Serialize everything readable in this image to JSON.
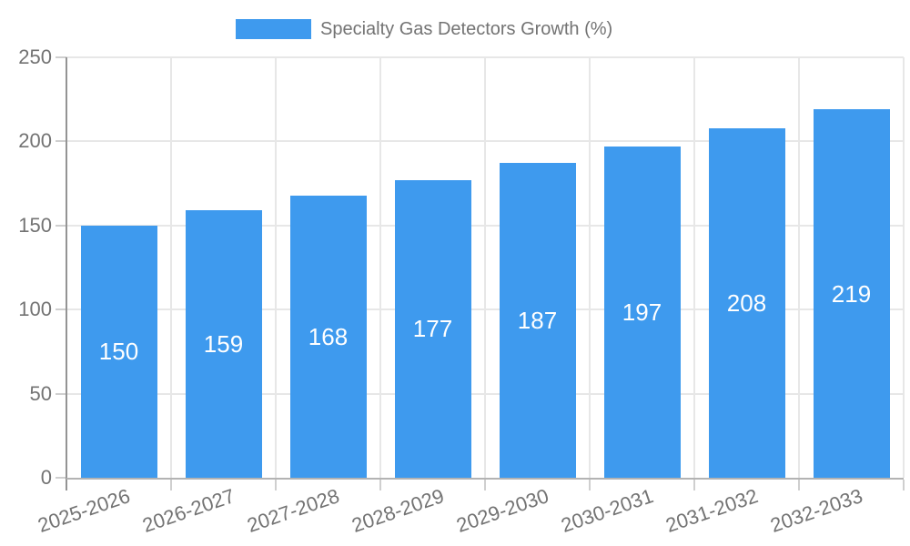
{
  "chart_data": {
    "type": "bar",
    "title": "Specialty Gas Detectors Growth (%)",
    "categories": [
      "2025-2026",
      "2026-2027",
      "2027-2028",
      "2028-2029",
      "2029-2030",
      "2030-2031",
      "2031-2032",
      "2032-2033"
    ],
    "values": [
      150,
      159,
      168,
      177,
      187,
      197,
      208,
      219
    ],
    "xlabel": "",
    "ylabel": "",
    "ylim": [
      0,
      250
    ],
    "yticks": [
      0,
      50,
      100,
      150,
      200,
      250
    ],
    "grid": true,
    "legend_position": "top-center",
    "value_label_position": "inside-center",
    "colors": {
      "bar": "#3e9aee",
      "value_label": "#ffffff",
      "axis_text": "#737373",
      "gridline": "#e7e7e7",
      "y_axis_line": "#949494",
      "x_axis_line": "#b3b3b3",
      "tick": "#cfcfcf",
      "background": "#ffffff"
    }
  }
}
